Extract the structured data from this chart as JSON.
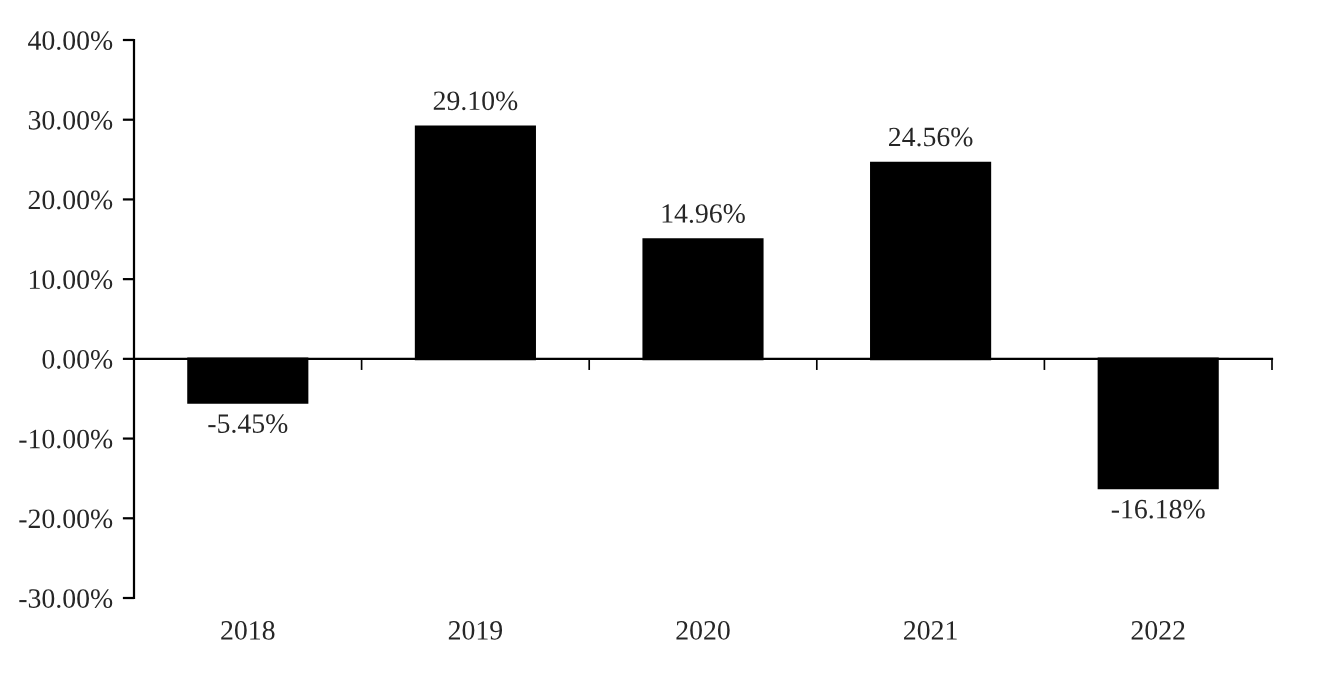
{
  "chart_data": {
    "type": "bar",
    "categories": [
      "2018",
      "2019",
      "2020",
      "2021",
      "2022"
    ],
    "values": [
      -5.45,
      29.1,
      14.96,
      24.56,
      -16.18
    ],
    "value_labels": [
      "-5.45%",
      "29.10%",
      "14.96%",
      "24.56%",
      "-16.18%"
    ],
    "color": "#000000",
    "ylim": [
      -30,
      40
    ],
    "yticks": [
      {
        "value": -30,
        "label": "-30.00%"
      },
      {
        "value": -20,
        "label": "-20.00%"
      },
      {
        "value": -10,
        "label": "-10.00%"
      },
      {
        "value": 0,
        "label": "0.00%"
      },
      {
        "value": 10,
        "label": "10.00%"
      },
      {
        "value": 20,
        "label": "20.00%"
      },
      {
        "value": 30,
        "label": "30.00%"
      },
      {
        "value": 40,
        "label": "40.00%"
      }
    ],
    "legend": false
  }
}
